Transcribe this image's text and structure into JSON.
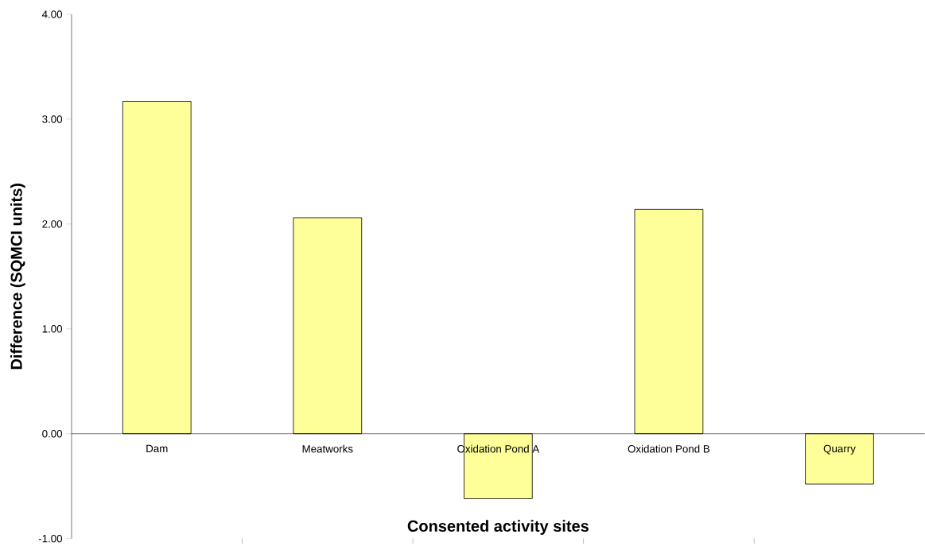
{
  "chart_data": {
    "type": "bar",
    "xlabel": "Consented activity sites",
    "ylabel": "Difference (SQMCI units)",
    "categories": [
      "Dam",
      "Meatworks",
      "Oxidation Pond A",
      "Oxidation Pond B",
      "Quarry"
    ],
    "values": [
      3.17,
      2.06,
      -0.62,
      2.14,
      -0.48
    ],
    "color": "#ffff99",
    "ylim": [
      -1,
      4
    ],
    "yticks": [
      {
        "value": -1,
        "label": "-1.00"
      },
      {
        "value": 0,
        "label": "0.00"
      },
      {
        "value": 1,
        "label": "1.00"
      },
      {
        "value": 2,
        "label": "2.00"
      },
      {
        "value": 3,
        "label": "3.00"
      },
      {
        "value": 4,
        "label": "4.00"
      }
    ],
    "grid": false
  }
}
